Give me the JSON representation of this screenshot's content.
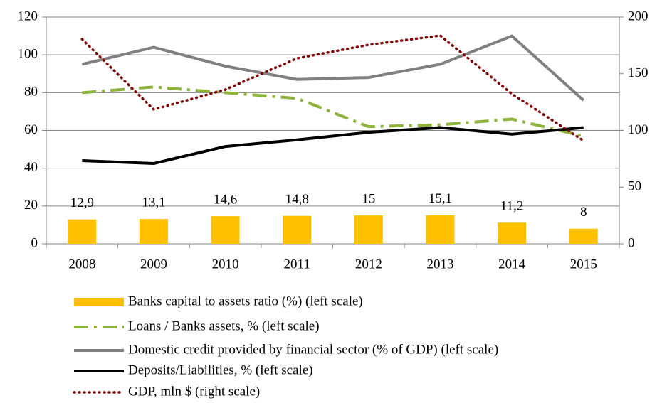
{
  "chart_data": {
    "type": "combo",
    "categories": [
      "2008",
      "2009",
      "2010",
      "2011",
      "2012",
      "2013",
      "2014",
      "2015"
    ],
    "series": [
      {
        "name": "Banks capital to assets ratio (%) (left scale)",
        "type": "bar",
        "color": "#ffc000",
        "values": [
          12.9,
          13.1,
          14.6,
          14.8,
          15,
          15.1,
          11.2,
          8
        ],
        "value_labels": [
          "12,9",
          "13,1",
          "14,6",
          "14,8",
          "15",
          "15,1",
          "11,2",
          "8"
        ]
      },
      {
        "name": "Loans / Banks assets, % (left scale)",
        "type": "line",
        "style": "dashdot",
        "color": "#8db33b",
        "values": [
          80,
          83,
          80,
          77,
          62,
          63,
          66,
          57
        ]
      },
      {
        "name": "Domestic credit provided by financial sector (% of GDP) (left scale)",
        "type": "line",
        "style": "solid",
        "color": "#808080",
        "values": [
          95,
          104,
          94,
          87,
          88,
          95,
          110,
          76
        ]
      },
      {
        "name": "Deposits/Liabilities, % (left scale)",
        "type": "line",
        "style": "solid",
        "color": "#000000",
        "values": [
          44,
          42.5,
          51.5,
          55,
          59,
          61.5,
          58,
          61.5
        ]
      },
      {
        "name": "GDP, mln $ (right scale)",
        "type": "line",
        "style": "dotted",
        "color": "#7f0000",
        "axis": "y2",
        "values": [
          180.5,
          118.5,
          136,
          163.6,
          175.5,
          183.7,
          132.3,
          91
        ]
      }
    ],
    "ylim": [
      0,
      120
    ],
    "yticks": [
      0,
      20,
      40,
      60,
      80,
      100,
      120
    ],
    "y2lim": [
      0,
      200
    ],
    "y2ticks": [
      0,
      50,
      100,
      150,
      200
    ],
    "grid": true,
    "legend": "bottom"
  }
}
